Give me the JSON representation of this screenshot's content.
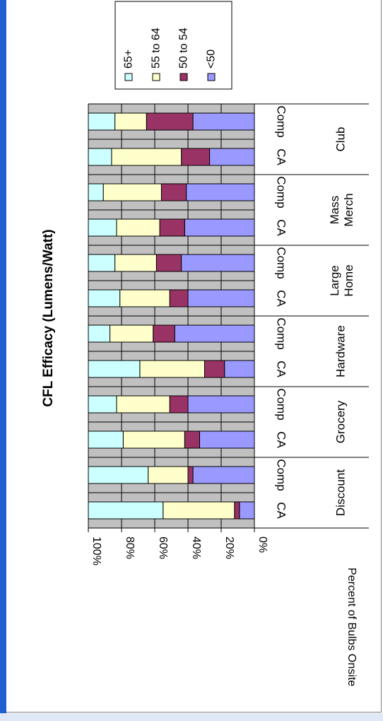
{
  "chart_data": {
    "type": "bar",
    "stacked": "percent",
    "orientation": "rotated-90",
    "title": "CFL Efficacy (Lumens/Watt)",
    "ylabel": "Percent of Bulbs Onsite",
    "yticks": [
      "0%",
      "20%",
      "40%",
      "60%",
      "80%",
      "100%"
    ],
    "ylim": [
      0,
      100
    ],
    "grid": true,
    "legend_position": "top-right",
    "groups": [
      {
        "name": "Discount",
        "bars": [
          "CA",
          "Comp"
        ]
      },
      {
        "name": "Grocery",
        "bars": [
          "CA",
          "Comp"
        ]
      },
      {
        "name": "Hardware",
        "bars": [
          "CA",
          "Comp"
        ]
      },
      {
        "name": "Large Home",
        "bars": [
          "CA",
          "Comp"
        ]
      },
      {
        "name": "Mass Merch",
        "bars": [
          "CA",
          "Comp"
        ]
      },
      {
        "name": "Club",
        "bars": [
          "CA",
          "Comp"
        ]
      }
    ],
    "series": [
      {
        "name": "<50",
        "color": "#9999ff",
        "values": [
          9,
          37,
          33,
          40,
          18,
          48,
          40,
          44,
          42,
          41,
          27,
          37
        ]
      },
      {
        "name": "50 to 54",
        "color": "#993366",
        "values": [
          3,
          3,
          9,
          11,
          12,
          13,
          11,
          15,
          15,
          15,
          17,
          28
        ]
      },
      {
        "name": "55 to 64",
        "color": "#ffffcc",
        "values": [
          43,
          24,
          37,
          32,
          39,
          26,
          30,
          25,
          26,
          35,
          42,
          19
        ]
      },
      {
        "name": "65+",
        "color": "#ccffff",
        "values": [
          45,
          36,
          21,
          17,
          31,
          13,
          19,
          16,
          17,
          9,
          14,
          16
        ]
      }
    ]
  }
}
